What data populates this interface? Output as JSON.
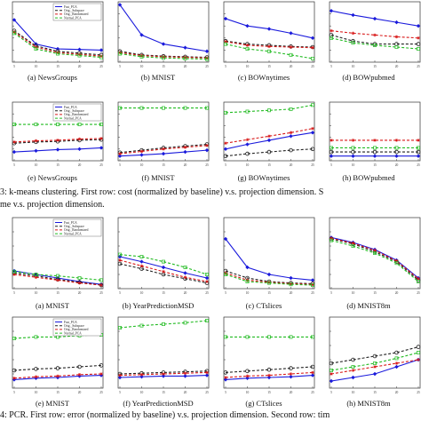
{
  "figure3": {
    "caption_row1": "3:   k-means clustering. First row: cost (normalized by baseline) v.s. projection dimension. S",
    "caption_row2": "me v.s. projection dimension.",
    "subcaptions_row1": [
      "(a) NewsGroups",
      "(b) MNIST",
      "(c) BOWnytimes",
      "(d) BOWpubmed"
    ],
    "subcaptions_row2": [
      "(e) NewsGroups",
      "(f) MNIST",
      "(g) BOWnytimes",
      "(h) BOWpubmed"
    ]
  },
  "figure4": {
    "caption_row1": "4:   PCR. First row: error (normalized by baseline) v.s. projection dimension. Second row: tim",
    "subcaptions_row1": [
      "(a) MNIST",
      "(b) YearPredictionMSD",
      "(c) CTslices",
      "(d) MNIST8m"
    ],
    "subcaptions_row2": [
      "(e) MNIST",
      "(f) YearPredictionMSD",
      "(g) CTslices",
      "(h) MNIST8m"
    ]
  },
  "legend": [
    "Fast_PCA",
    "Orig._Subspace",
    "Orig._Randomized",
    "Normal_PCA"
  ],
  "colors": {
    "Fast_PCA": "#1a1adc",
    "Orig._Subspace": "#222222",
    "Orig._Randomized": "#d81818",
    "Normal_PCA": "#22bb22"
  },
  "chart_data": [
    {
      "id": "3a",
      "type": "line",
      "dataset": "NewsGroups",
      "x": [
        1,
        2,
        3,
        4,
        5
      ],
      "tick_labels": [
        "5",
        "10",
        "15",
        "20",
        "25"
      ],
      "ylim": [
        0,
        1
      ],
      "series": [
        {
          "name": "Fast_PCA",
          "values": [
            0.7,
            0.3,
            0.22,
            0.21,
            0.2
          ]
        },
        {
          "name": "Orig._Subspace",
          "values": [
            0.52,
            0.27,
            0.18,
            0.15,
            0.12
          ]
        },
        {
          "name": "Orig._Randomized",
          "values": [
            0.5,
            0.25,
            0.16,
            0.13,
            0.1
          ]
        },
        {
          "name": "Normal_PCA",
          "values": [
            0.48,
            0.22,
            0.14,
            0.11,
            0.08
          ]
        }
      ]
    },
    {
      "id": "3b",
      "type": "line",
      "dataset": "MNIST",
      "x": [
        1,
        2,
        3,
        4,
        5
      ],
      "tick_labels": [
        "5",
        "10",
        "15",
        "20",
        "25"
      ],
      "ylim": [
        0,
        1
      ],
      "series": [
        {
          "name": "Fast_PCA",
          "values": [
            0.95,
            0.45,
            0.3,
            0.24,
            0.18
          ]
        },
        {
          "name": "Orig._Subspace",
          "values": [
            0.18,
            0.12,
            0.1,
            0.09,
            0.08
          ]
        },
        {
          "name": "Orig._Randomized",
          "values": [
            0.16,
            0.11,
            0.09,
            0.08,
            0.07
          ]
        },
        {
          "name": "Normal_PCA",
          "values": [
            0.14,
            0.09,
            0.07,
            0.06,
            0.05
          ]
        }
      ]
    },
    {
      "id": "3c",
      "type": "line",
      "dataset": "BOWnytimes",
      "x": [
        1,
        2,
        3,
        4,
        5
      ],
      "tick_labels": [
        "5",
        "10",
        "15",
        "20",
        "25"
      ],
      "ylim": [
        0,
        1
      ],
      "series": [
        {
          "name": "Fast_PCA",
          "values": [
            0.72,
            0.6,
            0.55,
            0.48,
            0.4
          ]
        },
        {
          "name": "Orig._Subspace",
          "values": [
            0.35,
            0.3,
            0.28,
            0.26,
            0.25
          ]
        },
        {
          "name": "Orig._Randomized",
          "values": [
            0.34,
            0.28,
            0.26,
            0.25,
            0.24
          ]
        },
        {
          "name": "Normal_PCA",
          "values": [
            0.3,
            0.22,
            0.18,
            0.12,
            0.06
          ]
        }
      ]
    },
    {
      "id": "3d",
      "type": "line",
      "dataset": "BOWpubmed",
      "x": [
        1,
        2,
        3,
        4,
        5
      ],
      "tick_labels": [
        "5",
        "10",
        "15",
        "20",
        "25"
      ],
      "ylim": [
        0,
        1
      ],
      "series": [
        {
          "name": "Fast_PCA",
          "values": [
            0.85,
            0.78,
            0.72,
            0.66,
            0.6
          ]
        },
        {
          "name": "Orig._Subspace",
          "values": [
            0.45,
            0.35,
            0.3,
            0.3,
            0.3
          ]
        },
        {
          "name": "Orig._Randomized",
          "values": [
            0.52,
            0.48,
            0.45,
            0.42,
            0.4
          ]
        },
        {
          "name": "Normal_PCA",
          "values": [
            0.4,
            0.32,
            0.28,
            0.25,
            0.22
          ]
        }
      ]
    },
    {
      "id": "3e",
      "type": "line",
      "dataset": "NewsGroups",
      "x": [
        1,
        2,
        3,
        4,
        5
      ],
      "tick_labels": [
        "5",
        "10",
        "15",
        "20",
        "25"
      ],
      "ylim": [
        0,
        1
      ],
      "series": [
        {
          "name": "Fast_PCA",
          "values": [
            0.15,
            0.17,
            0.19,
            0.2,
            0.22
          ]
        },
        {
          "name": "Orig._Subspace",
          "values": [
            0.3,
            0.32,
            0.33,
            0.35,
            0.36
          ]
        },
        {
          "name": "Orig._Randomized",
          "values": [
            0.32,
            0.34,
            0.35,
            0.37,
            0.38
          ]
        },
        {
          "name": "Normal_PCA",
          "values": [
            0.62,
            0.62,
            0.62,
            0.62,
            0.62
          ]
        }
      ]
    },
    {
      "id": "3f",
      "type": "line",
      "dataset": "MNIST",
      "x": [
        1,
        2,
        3,
        4,
        5
      ],
      "tick_labels": [
        "5",
        "10",
        "15",
        "20",
        "25"
      ],
      "ylim": [
        0,
        1
      ],
      "series": [
        {
          "name": "Fast_PCA",
          "values": [
            0.08,
            0.1,
            0.12,
            0.15,
            0.18
          ]
        },
        {
          "name": "Orig._Subspace",
          "values": [
            0.14,
            0.18,
            0.22,
            0.25,
            0.28
          ]
        },
        {
          "name": "Orig._Randomized",
          "values": [
            0.12,
            0.16,
            0.2,
            0.23,
            0.26
          ]
        },
        {
          "name": "Normal_PCA",
          "values": [
            0.9,
            0.9,
            0.9,
            0.9,
            0.9
          ]
        }
      ]
    },
    {
      "id": "3g",
      "type": "line",
      "dataset": "BOWnytimes",
      "x": [
        1,
        2,
        3,
        4,
        5
      ],
      "tick_labels": [
        "5",
        "10",
        "15",
        "20",
        "25"
      ],
      "ylim": [
        0,
        1
      ],
      "series": [
        {
          "name": "Fast_PCA",
          "values": [
            0.2,
            0.28,
            0.35,
            0.42,
            0.48
          ]
        },
        {
          "name": "Orig._Subspace",
          "values": [
            0.08,
            0.12,
            0.15,
            0.18,
            0.2
          ]
        },
        {
          "name": "Orig._Randomized",
          "values": [
            0.3,
            0.36,
            0.42,
            0.48,
            0.55
          ]
        },
        {
          "name": "Normal_PCA",
          "values": [
            0.82,
            0.84,
            0.86,
            0.88,
            0.95
          ]
        }
      ]
    },
    {
      "id": "3h",
      "type": "line",
      "dataset": "BOWpubmed",
      "x": [
        1,
        2,
        3,
        4,
        5
      ],
      "tick_labels": [
        "5",
        "10",
        "15",
        "20",
        "25"
      ],
      "ylim": [
        0,
        1
      ],
      "series": [
        {
          "name": "Fast_PCA",
          "values": [
            0.08,
            0.08,
            0.08,
            0.08,
            0.08
          ]
        },
        {
          "name": "Orig._Subspace",
          "values": [
            0.15,
            0.15,
            0.15,
            0.15,
            0.15
          ]
        },
        {
          "name": "Orig._Randomized",
          "values": [
            0.35,
            0.35,
            0.35,
            0.35,
            0.35
          ]
        },
        {
          "name": "Normal_PCA",
          "values": [
            0.22,
            0.22,
            0.22,
            0.22,
            0.22
          ]
        }
      ]
    },
    {
      "id": "4a",
      "type": "line",
      "dataset": "MNIST",
      "x": [
        1,
        2,
        3,
        4,
        5
      ],
      "tick_labels": [
        "5",
        "10",
        "15",
        "20",
        "25"
      ],
      "ylim": [
        0,
        1
      ],
      "series": [
        {
          "name": "Fast_PCA",
          "values": [
            0.25,
            0.2,
            0.15,
            0.1,
            0.06
          ]
        },
        {
          "name": "Orig._Subspace",
          "values": [
            0.22,
            0.18,
            0.13,
            0.09,
            0.05
          ]
        },
        {
          "name": "Orig._Randomized",
          "values": [
            0.2,
            0.16,
            0.12,
            0.08,
            0.05
          ]
        },
        {
          "name": "Normal_PCA",
          "values": [
            0.24,
            0.2,
            0.18,
            0.15,
            0.12
          ]
        }
      ]
    },
    {
      "id": "4b",
      "type": "line",
      "dataset": "YearPredictionMSD",
      "x": [
        1,
        2,
        3,
        4,
        5
      ],
      "tick_labels": [
        "5",
        "10",
        "15",
        "20",
        "25"
      ],
      "ylim": [
        0,
        1
      ],
      "series": [
        {
          "name": "Fast_PCA",
          "values": [
            0.45,
            0.38,
            0.3,
            0.22,
            0.15
          ]
        },
        {
          "name": "Orig._Subspace",
          "values": [
            0.35,
            0.28,
            0.2,
            0.14,
            0.08
          ]
        },
        {
          "name": "Orig._Randomized",
          "values": [
            0.4,
            0.32,
            0.24,
            0.16,
            0.1
          ]
        },
        {
          "name": "Normal_PCA",
          "values": [
            0.48,
            0.45,
            0.38,
            0.3,
            0.2
          ]
        }
      ]
    },
    {
      "id": "4c",
      "type": "line",
      "dataset": "CTslices",
      "x": [
        1,
        2,
        3,
        4,
        5
      ],
      "tick_labels": [
        "5",
        "10",
        "15",
        "20",
        "25"
      ],
      "ylim": [
        0,
        1
      ],
      "series": [
        {
          "name": "Fast_PCA",
          "values": [
            0.7,
            0.3,
            0.2,
            0.15,
            0.12
          ]
        },
        {
          "name": "Orig._Subspace",
          "values": [
            0.25,
            0.15,
            0.1,
            0.08,
            0.07
          ]
        },
        {
          "name": "Orig._Randomized",
          "values": [
            0.22,
            0.12,
            0.09,
            0.07,
            0.06
          ]
        },
        {
          "name": "Normal_PCA",
          "values": [
            0.2,
            0.1,
            0.08,
            0.06,
            0.05
          ]
        }
      ]
    },
    {
      "id": "4d",
      "type": "line",
      "dataset": "MNIST8m",
      "x": [
        1,
        2,
        3,
        4,
        5
      ],
      "tick_labels": [
        "5",
        "10",
        "15",
        "20",
        "25"
      ],
      "ylim": [
        0,
        1
      ],
      "series": [
        {
          "name": "Fast_PCA",
          "values": [
            0.72,
            0.65,
            0.55,
            0.4,
            0.15
          ]
        },
        {
          "name": "Orig._Subspace",
          "values": [
            0.7,
            0.63,
            0.52,
            0.38,
            0.12
          ]
        },
        {
          "name": "Orig._Randomized",
          "values": [
            0.71,
            0.64,
            0.54,
            0.39,
            0.14
          ]
        },
        {
          "name": "Normal_PCA",
          "values": [
            0.68,
            0.6,
            0.5,
            0.36,
            0.1
          ]
        }
      ]
    },
    {
      "id": "4e",
      "type": "line",
      "dataset": "MNIST",
      "x": [
        1,
        2,
        3,
        4,
        5
      ],
      "tick_labels": [
        "5",
        "10",
        "15",
        "20",
        "25"
      ],
      "ylim": [
        0,
        1
      ],
      "series": [
        {
          "name": "Fast_PCA",
          "values": [
            0.12,
            0.14,
            0.15,
            0.17,
            0.18
          ]
        },
        {
          "name": "Orig._Subspace",
          "values": [
            0.25,
            0.27,
            0.28,
            0.3,
            0.32
          ]
        },
        {
          "name": "Orig._Randomized",
          "values": [
            0.14,
            0.16,
            0.17,
            0.19,
            0.2
          ]
        },
        {
          "name": "Normal_PCA",
          "values": [
            0.7,
            0.72,
            0.72,
            0.74,
            0.75
          ]
        }
      ]
    },
    {
      "id": "4f",
      "type": "line",
      "dataset": "YearPredictionMSD",
      "x": [
        1,
        2,
        3,
        4,
        5
      ],
      "tick_labels": [
        "5",
        "10",
        "15",
        "20",
        "25"
      ],
      "ylim": [
        0,
        1
      ],
      "series": [
        {
          "name": "Fast_PCA",
          "values": [
            0.15,
            0.16,
            0.17,
            0.17,
            0.18
          ]
        },
        {
          "name": "Orig._Subspace",
          "values": [
            0.2,
            0.21,
            0.22,
            0.23,
            0.24
          ]
        },
        {
          "name": "Orig._Randomized",
          "values": [
            0.18,
            0.19,
            0.2,
            0.21,
            0.22
          ]
        },
        {
          "name": "Normal_PCA",
          "values": [
            0.85,
            0.88,
            0.9,
            0.92,
            0.95
          ]
        }
      ]
    },
    {
      "id": "4g",
      "type": "line",
      "dataset": "CTslices",
      "x": [
        1,
        2,
        3,
        4,
        5
      ],
      "tick_labels": [
        "5",
        "10",
        "15",
        "20",
        "25"
      ],
      "ylim": [
        0,
        1
      ],
      "series": [
        {
          "name": "Fast_PCA",
          "values": [
            0.12,
            0.14,
            0.15,
            0.16,
            0.18
          ]
        },
        {
          "name": "Orig._Subspace",
          "values": [
            0.22,
            0.24,
            0.26,
            0.28,
            0.3
          ]
        },
        {
          "name": "Orig._Randomized",
          "values": [
            0.15,
            0.17,
            0.18,
            0.2,
            0.22
          ]
        },
        {
          "name": "Normal_PCA",
          "values": [
            0.72,
            0.72,
            0.72,
            0.72,
            0.72
          ]
        }
      ]
    },
    {
      "id": "4h",
      "type": "line",
      "dataset": "MNIST8m",
      "x": [
        1,
        2,
        3,
        4,
        5
      ],
      "tick_labels": [
        "5",
        "10",
        "15",
        "20",
        "25"
      ],
      "ylim": [
        0,
        1
      ],
      "series": [
        {
          "name": "Fast_PCA",
          "values": [
            0.1,
            0.15,
            0.2,
            0.3,
            0.4
          ]
        },
        {
          "name": "Orig._Subspace",
          "values": [
            0.35,
            0.4,
            0.45,
            0.5,
            0.58
          ]
        },
        {
          "name": "Orig._Randomized",
          "values": [
            0.2,
            0.25,
            0.3,
            0.35,
            0.4
          ]
        },
        {
          "name": "Normal_PCA",
          "values": [
            0.25,
            0.3,
            0.35,
            0.42,
            0.5
          ]
        }
      ]
    }
  ]
}
